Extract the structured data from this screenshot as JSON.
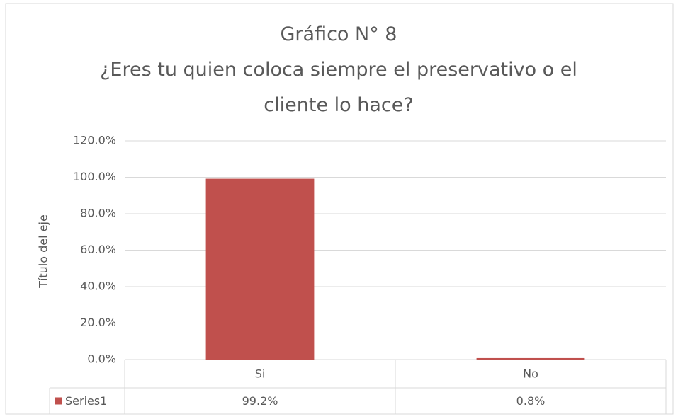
{
  "chart_data": {
    "type": "bar",
    "title": "Gráfico N° 8",
    "subtitle": "¿Eres tu quien coloca siempre el preservativo o el cliente lo hace?",
    "y_label": "Título del eje",
    "categories": [
      "Si",
      "No"
    ],
    "series": [
      {
        "name": "Series1",
        "color": "#c0504d",
        "values": [
          99.2,
          0.8
        ],
        "value_labels": [
          "99.2%",
          "0.8%"
        ]
      }
    ],
    "ylim": [
      0,
      120
    ],
    "yticks": [
      {
        "value": 0,
        "label": "0.0%"
      },
      {
        "value": 20,
        "label": "20.0%"
      },
      {
        "value": 40,
        "label": "40.0%"
      },
      {
        "value": 60,
        "label": "60.0%"
      },
      {
        "value": 80,
        "label": "80.0%"
      },
      {
        "value": 100,
        "label": "100.0%"
      },
      {
        "value": 120,
        "label": "120.0%"
      }
    ],
    "grid": true,
    "data_table": true
  }
}
